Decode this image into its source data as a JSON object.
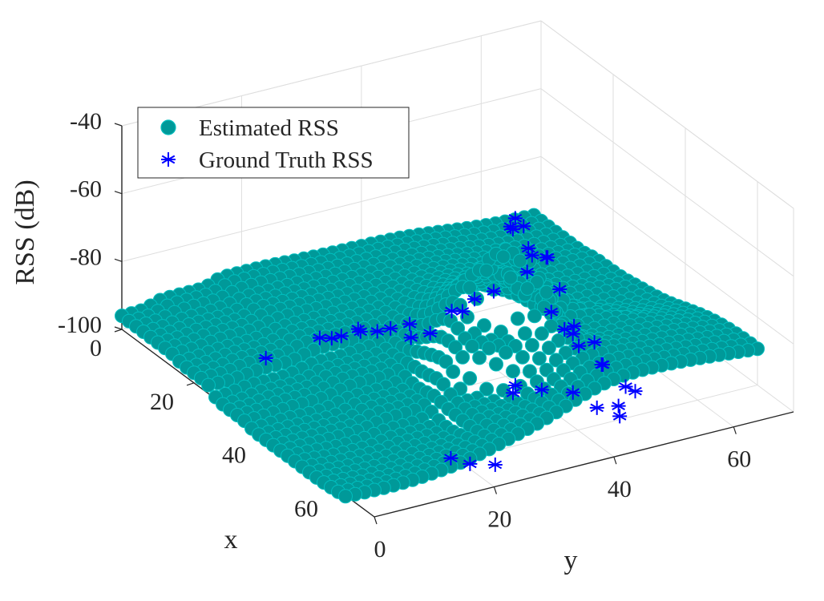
{
  "chart_data": {
    "type": "scatter3d",
    "xlabel": "x",
    "ylabel": "y",
    "zlabel": "RSS (dB)",
    "x_ticks": [
      "0",
      "20",
      "40",
      "60"
    ],
    "y_ticks": [
      "0",
      "20",
      "40",
      "60"
    ],
    "z_ticks": [
      "-40",
      "-60",
      "-80",
      "-100"
    ],
    "xlim": [
      0,
      70
    ],
    "ylim": [
      0,
      70
    ],
    "zlim": [
      -100,
      -40
    ],
    "grid": true,
    "legend_position": "top-left",
    "colors": {
      "estimated": "#009999",
      "ground_truth": "#0000ff"
    },
    "series": [
      {
        "name": "Estimated RSS",
        "marker": "filled-circle",
        "description_surface": [
          {
            "x": 0,
            "y": 0,
            "z": -96
          },
          {
            "x": 0,
            "y": 10,
            "z": -94
          },
          {
            "x": 0,
            "y": 20,
            "z": -92
          },
          {
            "x": 10,
            "y": 0,
            "z": -96
          },
          {
            "x": 10,
            "y": 10,
            "z": -95
          },
          {
            "x": 10,
            "y": 20,
            "z": -93
          },
          {
            "x": 20,
            "y": 0,
            "z": -97
          },
          {
            "x": 20,
            "y": 10,
            "z": -96
          },
          {
            "x": 20,
            "y": 20,
            "z": -94
          },
          {
            "x": 30,
            "y": 0,
            "z": -100
          },
          {
            "x": 30,
            "y": 10,
            "z": -99
          },
          {
            "x": 30,
            "y": 20,
            "z": -97
          },
          {
            "x": 40,
            "y": 0,
            "z": -101
          },
          {
            "x": 40,
            "y": 10,
            "z": -101
          },
          {
            "x": 40,
            "y": 20,
            "z": -99
          },
          {
            "x": 50,
            "y": 10,
            "z": -102
          },
          {
            "x": 50,
            "y": 20,
            "z": -101
          },
          {
            "x": 50,
            "y": 30,
            "z": -96
          },
          {
            "x": 45,
            "y": 35,
            "z": -84
          },
          {
            "x": 42,
            "y": 40,
            "z": -62
          },
          {
            "x": 40,
            "y": 45,
            "z": -78
          },
          {
            "x": 45,
            "y": 50,
            "z": -86
          },
          {
            "x": 35,
            "y": 55,
            "z": -92
          },
          {
            "x": 30,
            "y": 60,
            "z": -95
          },
          {
            "x": 20,
            "y": 65,
            "z": -96
          },
          {
            "x": 10,
            "y": 70,
            "z": -97
          }
        ]
      },
      {
        "name": "Ground Truth RSS",
        "marker": "asterisk",
        "points": [
          {
            "x": 42,
            "y": 40,
            "z": -55
          },
          {
            "x": 41,
            "y": 41,
            "z": -53
          },
          {
            "x": 43,
            "y": 39,
            "z": -53
          },
          {
            "x": 40,
            "y": 43,
            "z": -57
          },
          {
            "x": 44,
            "y": 42,
            "z": -62
          },
          {
            "x": 38,
            "y": 45,
            "z": -66
          },
          {
            "x": 40,
            "y": 47,
            "z": -68
          },
          {
            "x": 36,
            "y": 46,
            "z": -75
          },
          {
            "x": 38,
            "y": 48,
            "z": -70
          },
          {
            "x": 45,
            "y": 46,
            "z": -73
          },
          {
            "x": 46,
            "y": 44,
            "z": -78
          },
          {
            "x": 40,
            "y": 38,
            "z": -74
          },
          {
            "x": 38,
            "y": 36,
            "z": -77
          },
          {
            "x": 35,
            "y": 34,
            "z": -82
          },
          {
            "x": 33,
            "y": 37,
            "z": -85
          },
          {
            "x": 48,
            "y": 45,
            "z": -82
          },
          {
            "x": 47,
            "y": 47,
            "z": -85
          },
          {
            "x": 44,
            "y": 49,
            "z": -86
          },
          {
            "x": 30,
            "y": 30,
            "z": -88
          },
          {
            "x": 28,
            "y": 28,
            "z": -90
          },
          {
            "x": 26,
            "y": 27,
            "z": -92
          },
          {
            "x": 32,
            "y": 29,
            "z": -90
          },
          {
            "x": 34,
            "y": 31,
            "z": -88
          },
          {
            "x": 48,
            "y": 50,
            "z": -88
          },
          {
            "x": 47,
            "y": 48,
            "z": -89
          },
          {
            "x": 52,
            "y": 49,
            "z": -91
          },
          {
            "x": 50,
            "y": 50,
            "z": -93
          },
          {
            "x": 24,
            "y": 25,
            "z": -92
          },
          {
            "x": 23,
            "y": 26,
            "z": -94
          },
          {
            "x": 20,
            "y": 21,
            "z": -96
          },
          {
            "x": 20,
            "y": 23,
            "z": -97
          },
          {
            "x": 21,
            "y": 24,
            "z": -96
          },
          {
            "x": 47,
            "y": 37,
            "z": -98
          },
          {
            "x": 46,
            "y": 38,
            "z": -97
          },
          {
            "x": 55,
            "y": 51,
            "z": -96
          },
          {
            "x": 56,
            "y": 52,
            "z": -97
          },
          {
            "x": 58,
            "y": 48,
            "z": -98
          },
          {
            "x": 60,
            "y": 47,
            "z": -99
          },
          {
            "x": 52,
            "y": 44,
            "z": -97
          },
          {
            "x": 57,
            "y": 45,
            "z": -98
          },
          {
            "x": 58,
            "y": 20,
            "z": -101
          },
          {
            "x": 60,
            "y": 22,
            "z": -102
          },
          {
            "x": 62,
            "y": 25,
            "z": -102
          },
          {
            "x": 50,
            "y": 40,
            "z": -96
          },
          {
            "x": 20,
            "y": 12,
            "z": -98
          }
        ]
      }
    ]
  }
}
